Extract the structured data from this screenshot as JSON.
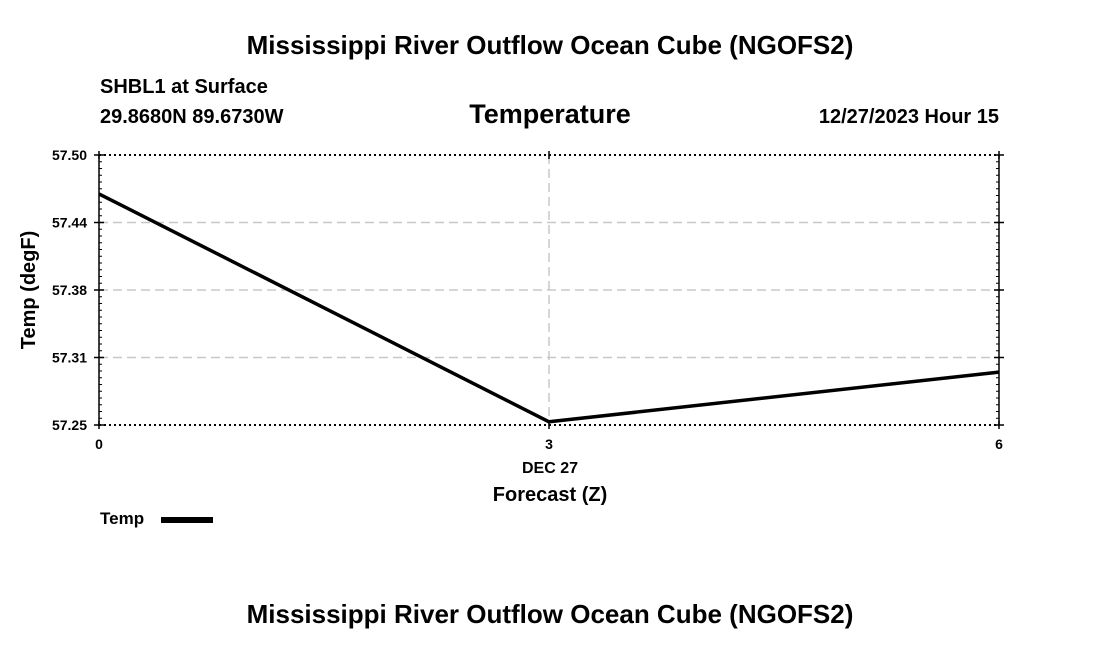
{
  "header": {
    "title": "Mississippi River Outflow Ocean Cube (NGOFS2)",
    "station": "SHBL1 at Surface",
    "coords": "29.8680N  89.6730W",
    "parameter": "Temperature",
    "datetime": "12/27/2023 Hour 15"
  },
  "footer": {
    "title": "Mississippi River Outflow Ocean Cube (NGOFS2)"
  },
  "legend": {
    "label": "Temp"
  },
  "chart_data": {
    "type": "line",
    "title": "Temperature",
    "xlabel": "Forecast (Z)",
    "ylabel": "Temp (degF)",
    "date_label": "DEC 27",
    "xlim": [
      0,
      6
    ],
    "ylim": [
      57.25,
      57.5
    ],
    "x_ticks": [
      0,
      3,
      6
    ],
    "x_tick_labels": [
      "0",
      "3",
      "6"
    ],
    "y_ticks": [
      57.25,
      57.3125,
      57.375,
      57.4375,
      57.5
    ],
    "y_tick_labels": [
      "57.25",
      "57.31",
      "57.38",
      "57.44",
      "57.50"
    ],
    "grid": true,
    "series": [
      {
        "name": "Temp",
        "color": "#000000",
        "x": [
          0,
          3,
          6
        ],
        "values": [
          57.464,
          57.253,
          57.299
        ]
      }
    ]
  }
}
